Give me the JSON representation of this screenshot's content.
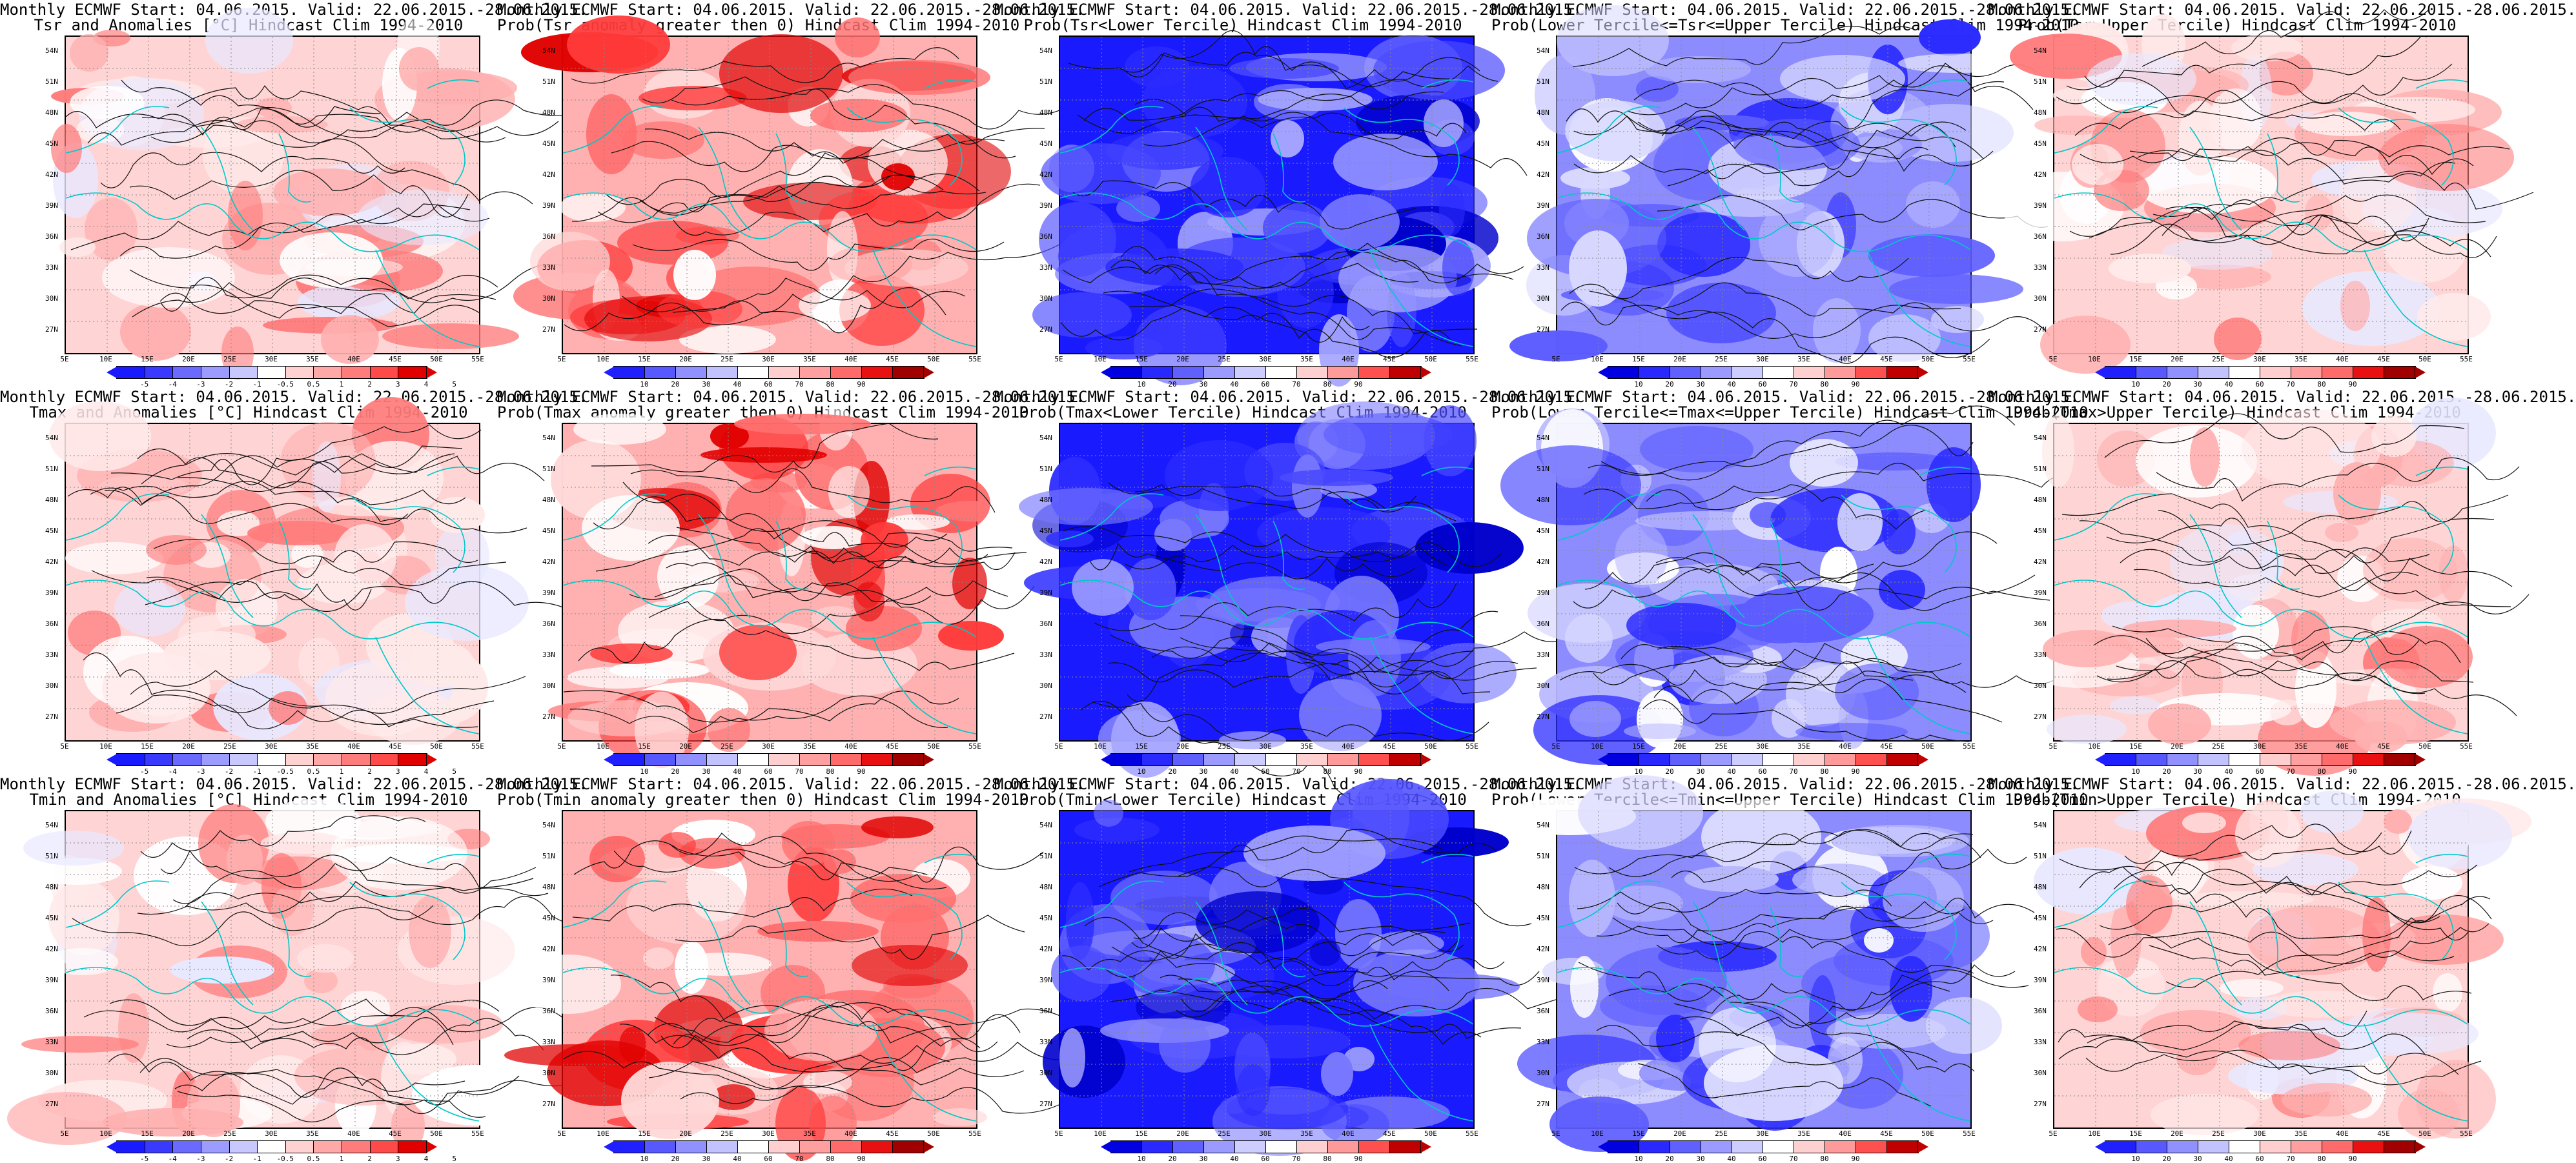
{
  "layout_note": "",
  "colors": {
    "anomaly": [
      "#1a1aff",
      "#3a3aff",
      "#6a6aff",
      "#9c9cff",
      "#c8c8ff",
      "#ffffff",
      "#ffd2d2",
      "#ffa8a8",
      "#ff7c7c",
      "#ff4a4a",
      "#e00000"
    ],
    "prob_red": [
      "#2020ff",
      "#5858ff",
      "#9090ff",
      "#c2c2ff",
      "#ffffff",
      "#ffcfcf",
      "#ff9f9f",
      "#ff6b6b",
      "#e81010",
      "#a00000"
    ],
    "prob_blue": [
      "#0000e0",
      "#2828ff",
      "#6060ff",
      "#9a9aff",
      "#cdcdff",
      "#ffffff",
      "#ffd0d0",
      "#ff9a9a",
      "#ff5050",
      "#c00000"
    ],
    "coast": "#00c8c8"
  },
  "lat_labels": [
    "54N",
    "51N",
    "48N",
    "45N",
    "42N",
    "39N",
    "36N",
    "33N",
    "30N",
    "27N"
  ],
  "lon_labels": [
    "5E",
    "10E",
    "15E",
    "20E",
    "25E",
    "30E",
    "35E",
    "40E",
    "45E",
    "50E",
    "55E"
  ],
  "anomaly_ticks": [
    "-5",
    "-4",
    "-3",
    "-2",
    "-1",
    "-0.5",
    "0.5",
    "1",
    "2",
    "3",
    "4",
    "5"
  ],
  "prob_ticks": [
    "10",
    "20",
    "30",
    "40",
    "60",
    "70",
    "80",
    "90"
  ],
  "panels": [
    {
      "line1": "Monthly ECMWF Start: 04.06.2015. Valid: 22.06.2015.-28.06.2015.",
      "line2": "Tsr and Anomalies [°C] Hindcast Clim 1994-2010",
      "kind": "anomaly",
      "bg": "red-light"
    },
    {
      "line1": "Monthly ECMWF Start: 04.06.2015. Valid: 22.06.2015.-28.06.2015.",
      "line2": "Prob(Tsr anomaly greater then 0) Hindcast Clim 1994-2010",
      "kind": "prob",
      "bg": "red-strong"
    },
    {
      "line1": "Monthly ECMWF Start: 04.06.2015. Valid: 22.06.2015.-28.06.2015.",
      "line2": "Prob(Tsr<Lower Tercile) Hindcast Clim 1994-2010",
      "kind": "prob",
      "bg": "blue-strong"
    },
    {
      "line1": "Monthly ECMWF Start: 04.06.2015. Valid: 22.06.2015.-28.06.2015.",
      "line2": "Prob(Lower Tercile<=Tsr<=Upper Tercile) Hindcast Clim 1994-2010",
      "kind": "prob",
      "bg": "blue-light"
    },
    {
      "line1": "Monthly ECMWF Start: 04.06.2015. Valid: 22.06.2015.-28.06.2015.",
      "line2": "Prob(Tsr>Upper Tercile) Hindcast Clim 1994-2010",
      "kind": "prob",
      "bg": "red-light"
    },
    {
      "line1": "Monthly ECMWF Start: 04.06.2015. Valid: 22.06.2015.-28.06.2015.",
      "line2": "Tmax and Anomalies [°C] Hindcast Clim 1994-2010",
      "kind": "anomaly",
      "bg": "red-light"
    },
    {
      "line1": "Monthly ECMWF Start: 04.06.2015. Valid: 22.06.2015.-28.06.2015.",
      "line2": "Prob(Tmax anomaly greater then 0) Hindcast Clim 1994-2010",
      "kind": "prob",
      "bg": "red-strong"
    },
    {
      "line1": "Monthly ECMWF Start: 04.06.2015. Valid: 22.06.2015.-28.06.2015.",
      "line2": "Prob(Tmax<Lower Tercile) Hindcast Clim 1994-2010",
      "kind": "prob",
      "bg": "blue-strong"
    },
    {
      "line1": "Monthly ECMWF Start: 04.06.2015. Valid: 22.06.2015.-28.06.2015.",
      "line2": "Prob(Lower Tercile<=Tmax<=Upper Tercile) Hindcast Clim 1994-2010",
      "kind": "prob",
      "bg": "blue-light"
    },
    {
      "line1": "Monthly ECMWF Start: 04.06.2015. Valid: 22.06.2015.-28.06.2015.",
      "line2": "Prob(Tmax>Upper Tercile) Hindcast Clim 1994-2010",
      "kind": "prob",
      "bg": "red-light"
    },
    {
      "line1": "Monthly ECMWF Start: 04.06.2015. Valid: 22.06.2015.-28.06.2015.",
      "line2": "Tmin and Anomalies [°C] Hindcast Clim 1994-2010",
      "kind": "anomaly",
      "bg": "red-light"
    },
    {
      "line1": "Monthly ECMWF Start: 04.06.2015. Valid: 22.06.2015.-28.06.2015.",
      "line2": "Prob(Tmin anomaly greater then 0) Hindcast Clim 1994-2010",
      "kind": "prob",
      "bg": "red-strong"
    },
    {
      "line1": "Monthly ECMWF Start: 04.06.2015. Valid: 22.06.2015.-28.06.2015.",
      "line2": "Prob(Tmin<Lower Tercile) Hindcast Clim 1994-2010",
      "kind": "prob",
      "bg": "blue-strong"
    },
    {
      "line1": "Monthly ECMWF Start: 04.06.2015. Valid: 22.06.2015.-28.06.2015.",
      "line2": "Prob(Lower Tercile<=Tmin<=Upper Tercile) Hindcast Clim 1994-2010",
      "kind": "prob",
      "bg": "blue-light"
    },
    {
      "line1": "Monthly ECMWF Start: 04.06.2015. Valid: 22.06.2015.-28.06.2015.",
      "line2": "Prob(Tmin>Upper Tercile) Hindcast Clim 1994-2010",
      "kind": "prob",
      "bg": "red-light"
    }
  ]
}
